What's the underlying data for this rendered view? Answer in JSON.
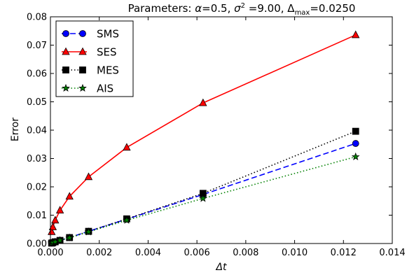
{
  "chart_data": {
    "type": "line",
    "title": {
      "prefix": "Parameters: ",
      "alpha_sym": "α",
      "alpha_val": "=0.5, ",
      "sigma_sym": "σ",
      "sigma_sup": "2",
      "sigma_val": " =9.00, ",
      "delta_sym": "Δ",
      "delta_sub": "max",
      "delta_val": "=0.0250"
    },
    "xlabel": "Δt",
    "ylabel": "Error",
    "xlim": [
      0,
      0.014
    ],
    "ylim": [
      0,
      0.08
    ],
    "xticks": [
      "0.000",
      "0.002",
      "0.004",
      "0.006",
      "0.008",
      "0.010",
      "0.012",
      "0.014"
    ],
    "yticks": [
      "0.00",
      "0.01",
      "0.02",
      "0.03",
      "0.04",
      "0.05",
      "0.06",
      "0.07",
      "0.08"
    ],
    "grid": false,
    "legend_position": "top-left",
    "x": [
      4.88e-05,
      9.77e-05,
      0.000195,
      0.000391,
      0.000781,
      0.001563,
      0.003125,
      0.00625,
      0.0125
    ],
    "series": [
      {
        "name": "SMS",
        "color": "#0000ff",
        "linestyle": "dashed",
        "marker": "circle",
        "values": [
          0.00015,
          0.0003,
          0.0006,
          0.0011,
          0.0021,
          0.0043,
          0.0086,
          0.0173,
          0.0353
        ]
      },
      {
        "name": "SES",
        "color": "#ff0000",
        "linestyle": "solid",
        "marker": "triangle",
        "values": [
          0.0041,
          0.0058,
          0.0082,
          0.0117,
          0.0166,
          0.0235,
          0.0339,
          0.0496,
          0.0736
        ]
      },
      {
        "name": "MES",
        "color": "#000000",
        "linestyle": "dotted",
        "marker": "square",
        "values": [
          0.00015,
          0.0003,
          0.0006,
          0.0011,
          0.0021,
          0.0043,
          0.0087,
          0.0177,
          0.0396
        ]
      },
      {
        "name": "AIS",
        "color": "#008000",
        "linestyle": "dotted",
        "marker": "star",
        "values": [
          0.00014,
          0.00028,
          0.00055,
          0.0011,
          0.002,
          0.0041,
          0.0082,
          0.0159,
          0.0306
        ]
      }
    ]
  }
}
